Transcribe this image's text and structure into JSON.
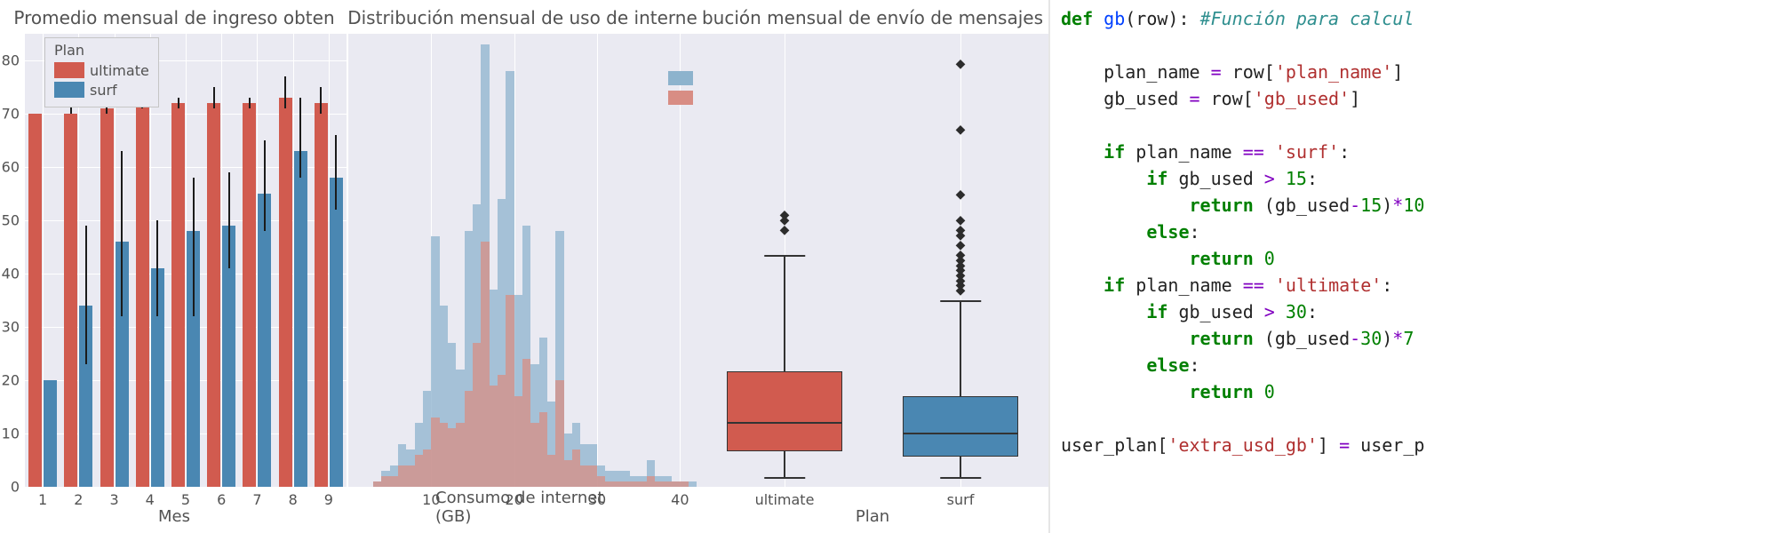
{
  "colors": {
    "ultimate": "#d15b4f",
    "surf": "#4a87b2",
    "ultimate_alpha": "#d88d84",
    "surf_alpha": "#8db3cd",
    "plot_bg": "#eaeaf2",
    "grid": "#ffffff",
    "text": "#525252",
    "err": "#1b1b1b"
  },
  "panel1": {
    "title": "Promedio mensual de ingreso obten",
    "xlabel": "Mes",
    "legend_title": "Plan",
    "ymax": 85,
    "yticks": [
      0,
      10,
      20,
      30,
      40,
      50,
      60,
      70,
      80
    ],
    "months": [
      1,
      2,
      3,
      4,
      5,
      6,
      7,
      8,
      9
    ],
    "ultimate": [
      70,
      70,
      71,
      73,
      72,
      72,
      72,
      73,
      72
    ],
    "ultimate_err": [
      [
        70,
        70
      ],
      [
        70,
        74
      ],
      [
        70,
        84
      ],
      [
        71,
        79
      ],
      [
        71,
        73
      ],
      [
        71,
        75
      ],
      [
        71,
        73
      ],
      [
        71,
        77
      ],
      [
        70,
        75
      ]
    ],
    "surf": [
      20,
      34,
      46,
      41,
      48,
      49,
      55,
      63,
      58
    ],
    "surf_err": [
      [
        20,
        20
      ],
      [
        23,
        49
      ],
      [
        32,
        63
      ],
      [
        32,
        50
      ],
      [
        32,
        58
      ],
      [
        41,
        59
      ],
      [
        48,
        65
      ],
      [
        58,
        73
      ],
      [
        52,
        66
      ]
    ]
  },
  "panel2": {
    "title": "Distribución mensual de uso de interne",
    "xlabel": "Consumo de internet (GB)",
    "xticks": [
      10,
      20,
      30,
      40
    ],
    "xmax": 42,
    "ymax": 85,
    "bins": {
      "start": 0,
      "width": 1,
      "surf": [
        0,
        0,
        0,
        1,
        3,
        4,
        8,
        7,
        12,
        18,
        47,
        34,
        27,
        22,
        48,
        53,
        83,
        37,
        54,
        78,
        36,
        49,
        23,
        28,
        16,
        48,
        10,
        12,
        8,
        8,
        4,
        3,
        3,
        3,
        2,
        2,
        5,
        2,
        2,
        1,
        1,
        1
      ],
      "ultimate": [
        0,
        0,
        0,
        1,
        2,
        2,
        4,
        4,
        6,
        7,
        13,
        12,
        11,
        12,
        18,
        27,
        46,
        19,
        21,
        36,
        17,
        24,
        12,
        14,
        6,
        20,
        5,
        7,
        4,
        4,
        2,
        1,
        1,
        1,
        1,
        1,
        2,
        1,
        1,
        1,
        1,
        0
      ]
    }
  },
  "panel3": {
    "title": "bución mensual de envío de mensajes",
    "xlabel": "Plan",
    "categories": [
      "ultimate",
      "surf"
    ],
    "ymax": 90,
    "boxes": {
      "ultimate": {
        "q1": 7,
        "med": 13,
        "q3": 23,
        "wl": 2,
        "wu": 46,
        "outliers": [
          51,
          53,
          54
        ]
      },
      "surf": {
        "q1": 6,
        "med": 11,
        "q3": 18,
        "wl": 2,
        "wu": 37,
        "outliers": [
          39,
          40,
          41,
          42,
          43,
          44,
          45,
          46,
          48,
          50,
          51,
          53,
          58,
          71,
          84
        ]
      }
    },
    "colors": {
      "ultimate": "#d15b4f",
      "surf": "#4a87b2"
    }
  },
  "code": {
    "lines": [
      {
        "t": "def ",
        "c": "kw"
      },
      {
        "t": "gb",
        "c": "fn"
      },
      {
        "t": "(row): ",
        "c": ""
      },
      {
        "t": "#Función para calcul",
        "c": "cm"
      },
      {
        "t": "\n",
        "c": ""
      },
      {
        "t": "\n",
        "c": ""
      },
      {
        "t": "    plan_name ",
        "c": ""
      },
      {
        "t": "=",
        "c": "op"
      },
      {
        "t": " row[",
        "c": ""
      },
      {
        "t": "'plan_name'",
        "c": "str"
      },
      {
        "t": "]\n",
        "c": ""
      },
      {
        "t": "    gb_used ",
        "c": ""
      },
      {
        "t": "=",
        "c": "op"
      },
      {
        "t": " row[",
        "c": ""
      },
      {
        "t": "'gb_used'",
        "c": "str"
      },
      {
        "t": "]\n",
        "c": ""
      },
      {
        "t": "\n",
        "c": ""
      },
      {
        "t": "    if ",
        "c": "kw"
      },
      {
        "t": "plan_name ",
        "c": ""
      },
      {
        "t": "==",
        "c": "op"
      },
      {
        "t": " ",
        "c": ""
      },
      {
        "t": "'surf'",
        "c": "str"
      },
      {
        "t": ":\n",
        "c": ""
      },
      {
        "t": "        if ",
        "c": "kw"
      },
      {
        "t": "gb_used ",
        "c": ""
      },
      {
        "t": ">",
        "c": "op"
      },
      {
        "t": " ",
        "c": ""
      },
      {
        "t": "15",
        "c": "num"
      },
      {
        "t": ":\n",
        "c": ""
      },
      {
        "t": "            return ",
        "c": "kw"
      },
      {
        "t": "(gb_used",
        "c": ""
      },
      {
        "t": "-",
        "c": "op"
      },
      {
        "t": "15",
        "c": "num"
      },
      {
        "t": ")",
        "c": ""
      },
      {
        "t": "*",
        "c": "op"
      },
      {
        "t": "10",
        "c": "num"
      },
      {
        "t": "\n",
        "c": ""
      },
      {
        "t": "        else",
        "c": "kw"
      },
      {
        "t": ":\n",
        "c": ""
      },
      {
        "t": "            return ",
        "c": "kw"
      },
      {
        "t": "0",
        "c": "num"
      },
      {
        "t": "\n",
        "c": ""
      },
      {
        "t": "    if ",
        "c": "kw"
      },
      {
        "t": "plan_name ",
        "c": ""
      },
      {
        "t": "==",
        "c": "op"
      },
      {
        "t": " ",
        "c": ""
      },
      {
        "t": "'ultimate'",
        "c": "str"
      },
      {
        "t": ":\n",
        "c": ""
      },
      {
        "t": "        if ",
        "c": "kw"
      },
      {
        "t": "gb_used ",
        "c": ""
      },
      {
        "t": ">",
        "c": "op"
      },
      {
        "t": " ",
        "c": ""
      },
      {
        "t": "30",
        "c": "num"
      },
      {
        "t": ":\n",
        "c": ""
      },
      {
        "t": "            return ",
        "c": "kw"
      },
      {
        "t": "(gb_used",
        "c": ""
      },
      {
        "t": "-",
        "c": "op"
      },
      {
        "t": "30",
        "c": "num"
      },
      {
        "t": ")",
        "c": ""
      },
      {
        "t": "*",
        "c": "op"
      },
      {
        "t": "7",
        "c": "num"
      },
      {
        "t": "\n",
        "c": ""
      },
      {
        "t": "        else",
        "c": "kw"
      },
      {
        "t": ":\n",
        "c": ""
      },
      {
        "t": "            return ",
        "c": "kw"
      },
      {
        "t": "0",
        "c": "num"
      },
      {
        "t": "\n",
        "c": ""
      },
      {
        "t": "\n",
        "c": ""
      },
      {
        "t": "user_plan[",
        "c": ""
      },
      {
        "t": "'extra_usd_gb'",
        "c": "str"
      },
      {
        "t": "] ",
        "c": ""
      },
      {
        "t": "=",
        "c": "op"
      },
      {
        "t": " user_p",
        "c": ""
      },
      {
        "t": "\n",
        "c": ""
      }
    ]
  }
}
